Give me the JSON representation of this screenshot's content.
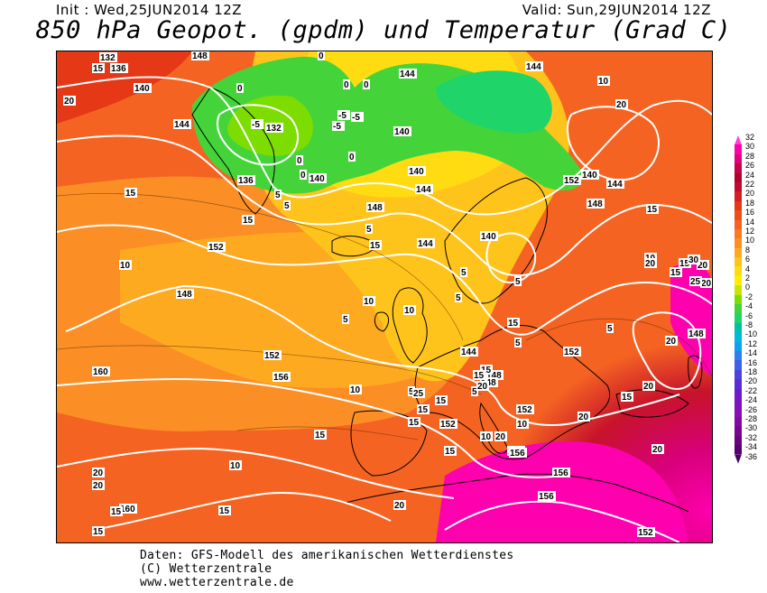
{
  "header": {
    "init": "Init : Wed,25JUN2014 12Z",
    "valid": "Valid: Sun,29JUN2014 12Z",
    "title": "850 hPa Geopot. (gpdm) und Temperatur (Grad C)"
  },
  "footer": {
    "line1": "Daten: GFS-Modell des amerikanischen Wetterdienstes",
    "line2": "(C) Wetterzentrale",
    "line3": "www.wetterzentrale.de"
  },
  "legend": {
    "labels": [
      "32",
      "30",
      "28",
      "26",
      "24",
      "22",
      "20",
      "18",
      "16",
      "14",
      "12",
      "10",
      "8",
      "6",
      "4",
      "2",
      "0",
      "-2",
      "-4",
      "-6",
      "-8",
      "-10",
      "-12",
      "-14",
      "-16",
      "-18",
      "-20",
      "-22",
      "-24",
      "-26",
      "-28",
      "-30",
      "-32",
      "-34",
      "-36"
    ],
    "colors": [
      "#ff3fd8",
      "#ff00ae",
      "#e0007d",
      "#c8004a",
      "#b3002e",
      "#c20a2c",
      "#d51e20",
      "#e53816",
      "#f04e16",
      "#f56322",
      "#f87a24",
      "#fb8f26",
      "#fdaa20",
      "#ffc41c",
      "#ffdc12",
      "#ffee00",
      "#c8e600",
      "#7ddc00",
      "#44d43a",
      "#1fd468",
      "#00c0a8",
      "#00b8d8",
      "#10a0f0",
      "#2b7fee",
      "#3e5fe8",
      "#4c42de",
      "#5a2cd6",
      "#6a1ccc",
      "#7a14c0",
      "#8a0eb4",
      "#8608a4",
      "#7a0494",
      "#6a0282",
      "#580070",
      "#44005c"
    ]
  },
  "map_labels": {
    "geopotential": [
      "132",
      "136",
      "148",
      "140",
      "144",
      "132",
      "136",
      "140",
      "144",
      "140",
      "144",
      "140",
      "148",
      "144",
      "152",
      "148",
      "140",
      "144",
      "152",
      "148",
      "152",
      "156",
      "160",
      "152",
      "148",
      "152",
      "156",
      "156",
      "156",
      "156",
      "152",
      "160",
      "148",
      "144",
      "152",
      "148",
      "140",
      "144"
    ],
    "temperature": [
      "15",
      "20",
      "15",
      "10",
      "0",
      "-5",
      "0",
      "-5",
      "0",
      "-5",
      "-5",
      "0",
      "0",
      "0",
      "5",
      "0",
      "15",
      "5",
      "5",
      "15",
      "10",
      "5",
      "5",
      "5",
      "10",
      "5",
      "10",
      "5",
      "15",
      "5",
      "5",
      "15",
      "15",
      "5",
      "15",
      "10",
      "15",
      "20",
      "15",
      "20",
      "25",
      "30",
      "20",
      "20",
      "20",
      "20",
      "15",
      "20",
      "15",
      "10",
      "10",
      "20",
      "20",
      "15",
      "15",
      "15",
      "25",
      "20",
      "20",
      "15",
      "20",
      "15",
      "10",
      "15",
      "15",
      "10",
      "20"
    ]
  },
  "colors": {
    "contour": "#ffffff",
    "coast": "#000000"
  }
}
